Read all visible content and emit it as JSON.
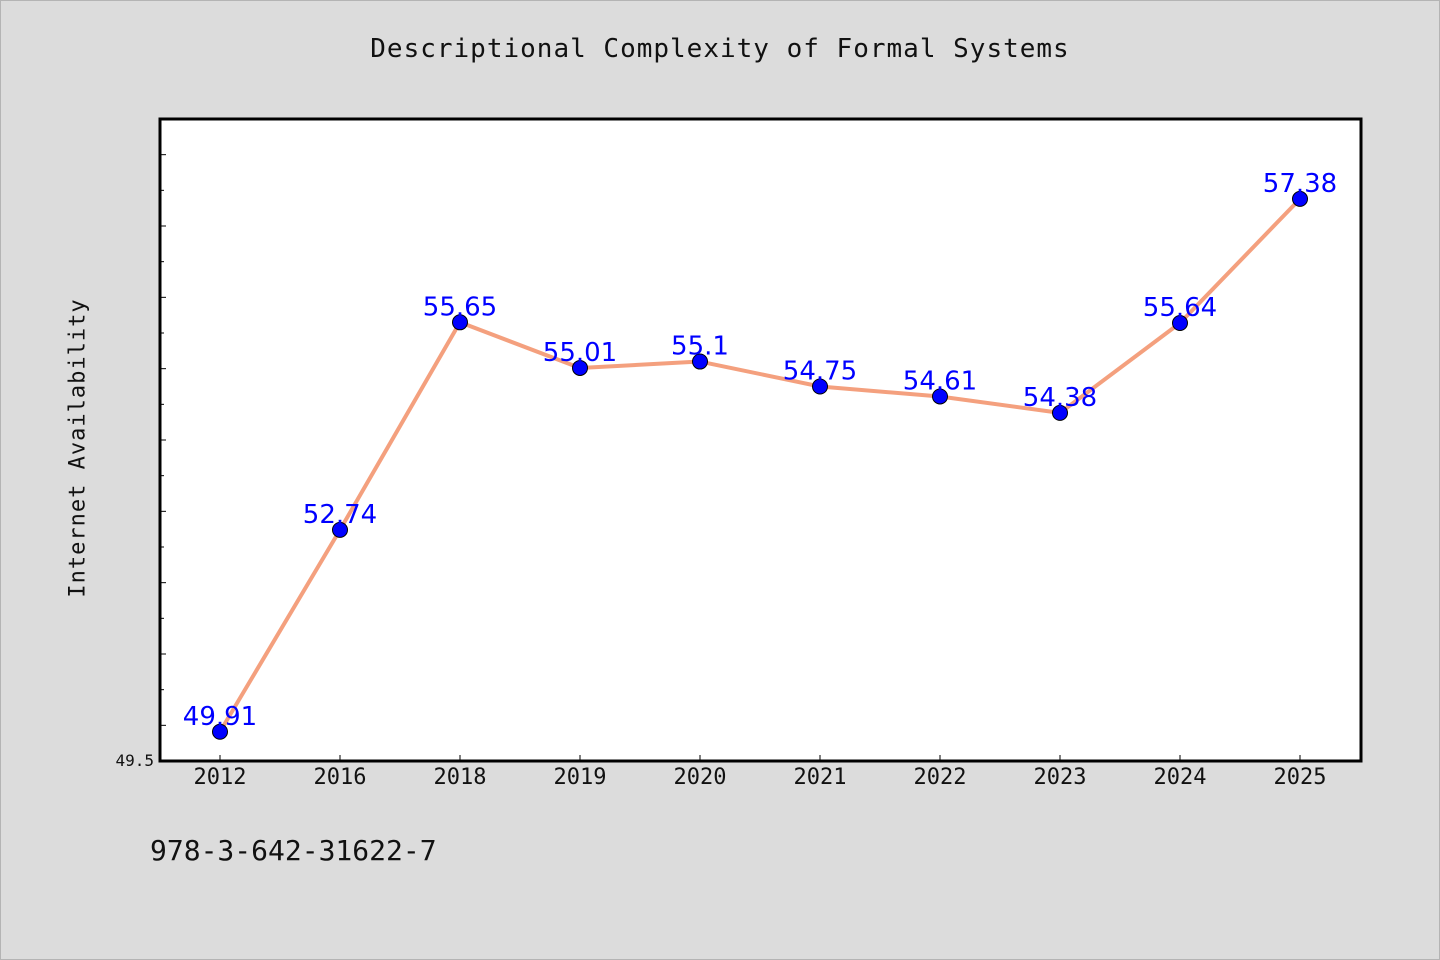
{
  "colors": {
    "background": "#dcdcdc",
    "plot_background": "#ffffff",
    "line": "#f4a07e",
    "marker": "#0000ff",
    "data_label": "#0000ff",
    "text": "#111111"
  },
  "footer": {
    "isbn": "978-3-642-31622-7"
  },
  "chart_data": {
    "type": "line",
    "title": "Descriptional Complexity of Formal Systems",
    "xlabel": "",
    "ylabel": "Internet Availability",
    "categories": [
      "2012",
      "2016",
      "2018",
      "2019",
      "2020",
      "2021",
      "2022",
      "2023",
      "2024",
      "2025"
    ],
    "series": [
      {
        "values": [
          49.91,
          52.74,
          55.65,
          55.01,
          55.1,
          54.75,
          54.61,
          54.38,
          55.64,
          57.38
        ],
        "data_labels": [
          "49.91",
          "52.74",
          "55.65",
          "55.01",
          "55.1",
          "54.75",
          "54.61",
          "54.38",
          "55.64",
          "57.38"
        ]
      }
    ],
    "y_tick_labels": [
      "49.5"
    ],
    "ylim": [
      49.5,
      58.5
    ],
    "grid": false,
    "legend": "none"
  }
}
